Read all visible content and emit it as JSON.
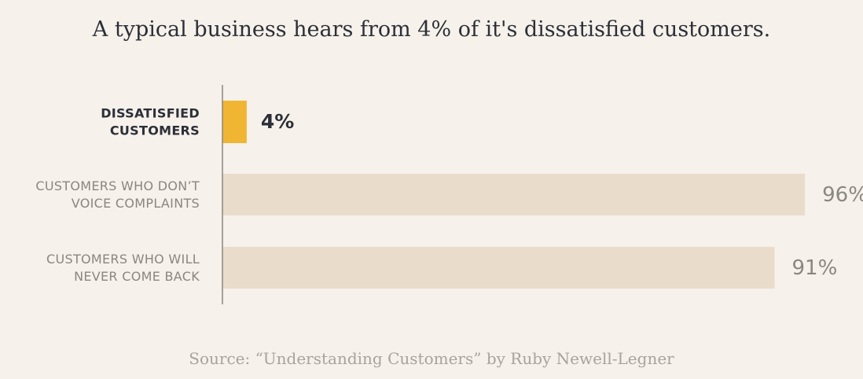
{
  "chart_data": {
    "type": "bar",
    "orientation": "horizontal",
    "title": "A typical business hears from 4% of it's dissatisfied customers.",
    "source": "Source: “Understanding Customers” by Ruby Newell-Legner",
    "categories": [
      [
        "DISSATISFIED",
        "CUSTOMERS"
      ],
      [
        "CUSTOMERS WHO DON’T",
        "VOICE COMPLAINTS"
      ],
      [
        "CUSTOMERS WHO WILL",
        "NEVER COME BACK"
      ]
    ],
    "values": [
      4,
      96,
      91
    ],
    "value_labels": [
      "4%",
      "96%",
      "91%"
    ],
    "unit": "%",
    "xlim": [
      0,
      100
    ],
    "grid": false,
    "highlight_index": 0,
    "colors": {
      "highlight_bar": "#f0b533",
      "bar": "#e9dccb",
      "highlight_text": "#2c2f38",
      "text": "#8a8680",
      "axis": "#8a8680"
    }
  }
}
